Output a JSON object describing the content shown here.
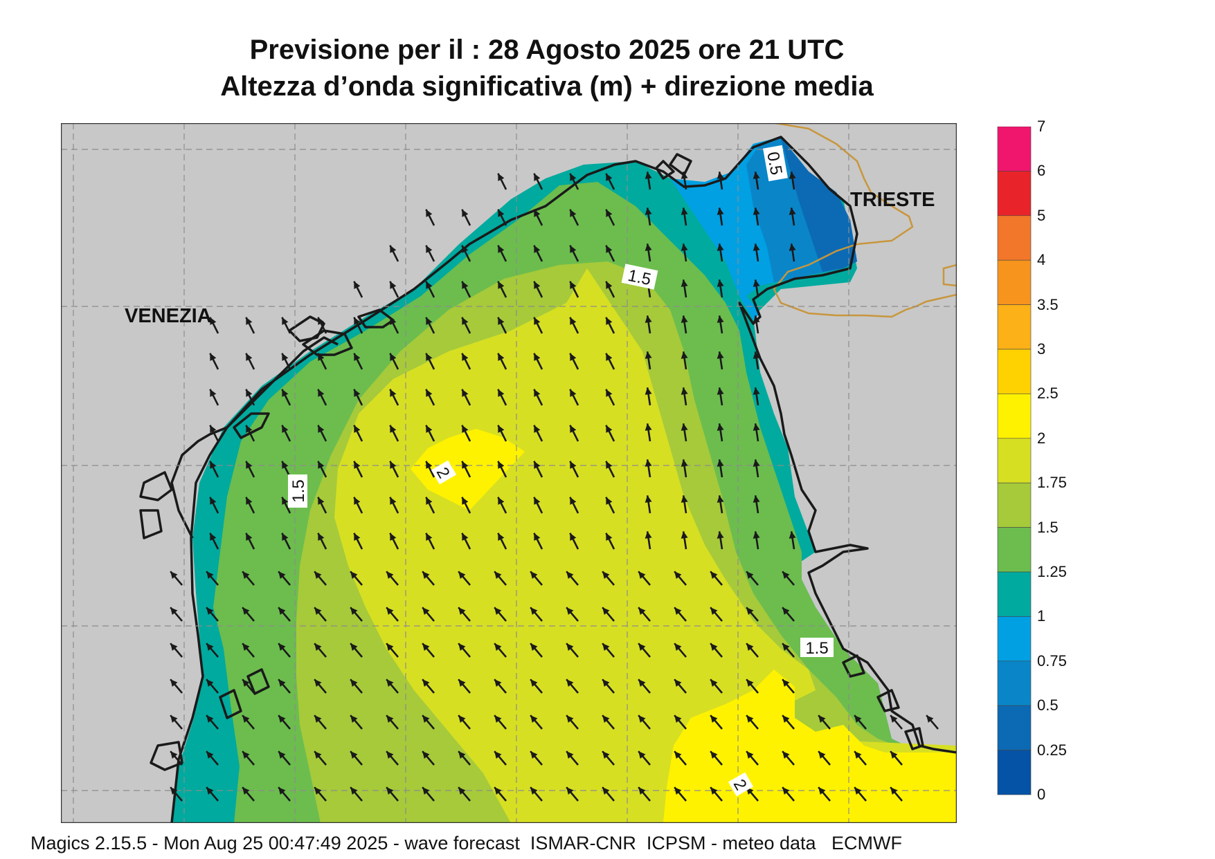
{
  "title": {
    "line1": "Previsione per il  :  28   Agosto  2025   ore 21 UTC",
    "line2": "Altezza d’onda significativa (m) + direzione media"
  },
  "places": {
    "venezia": "VENEZIA",
    "trieste": "TRIESTE"
  },
  "contour_labels": [
    "0.5",
    "1.5",
    "1.5",
    "1.5",
    "2",
    "2"
  ],
  "legend": {
    "labels": [
      "7",
      "6",
      "5",
      "4",
      "3.5",
      "3",
      "2.5",
      "2",
      "1.75",
      "1.5",
      "1.25",
      "1",
      "0.75",
      "0.5",
      "0.25",
      "0"
    ],
    "colors": [
      "#f0166e",
      "#e8242a",
      "#f2772a",
      "#f7941d",
      "#fbb117",
      "#fdd200",
      "#fff200",
      "#d7df23",
      "#a6ca3a",
      "#6cbd4e",
      "#00aa9e",
      "#00a0e3",
      "#0a86c8",
      "#0c6ab4",
      "#0553a6"
    ]
  },
  "colors": {
    "land": "#c8c8c8",
    "coast": "#1a1a1a",
    "border": "#c8963c",
    "arrow": "#1a1a1a"
  },
  "footer": "Magics 2.15.5 - Mon Aug 25 00:47:49 2025 - wave forecast  ISMAR-CNR  ICPSM - meteo data   ECMWF"
}
